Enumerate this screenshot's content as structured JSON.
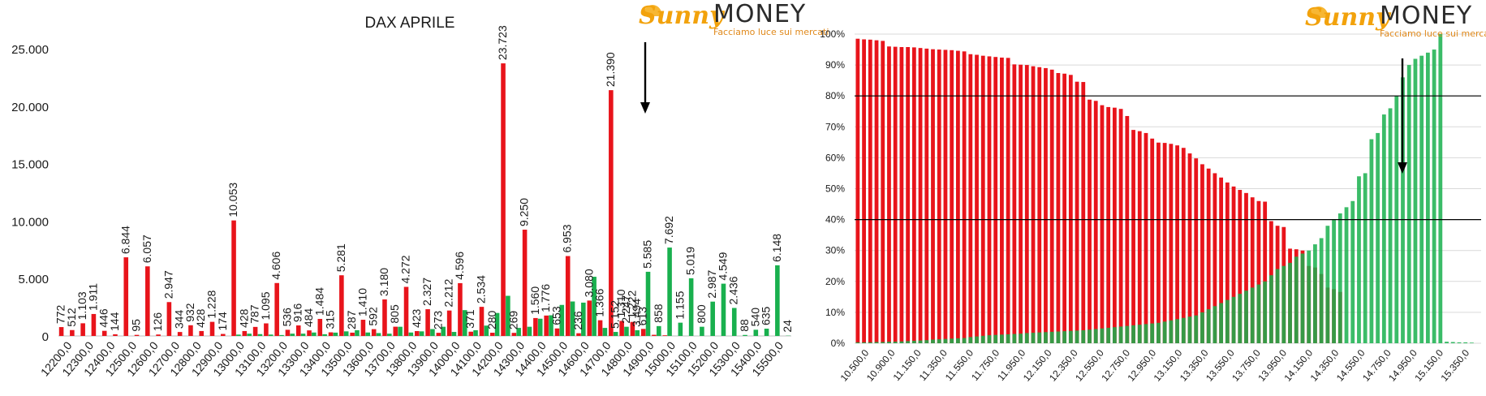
{
  "brand": {
    "sunny": "Sunny",
    "money": "MONEY",
    "tagline": "Facciamo luce sui mercati"
  },
  "chart_data": [
    {
      "type": "bar",
      "title": "DAX APRILE",
      "xlabel": "",
      "ylabel": "",
      "ylim": [
        0,
        25000
      ],
      "y_ticks": [
        "0",
        "5.000",
        "10.000",
        "15.000",
        "20.000",
        "25.000"
      ],
      "x_tick_labels": [
        "12200,0",
        "12300,0",
        "12400,0",
        "12500,0",
        "12600,0",
        "12700,0",
        "12800,0",
        "12900,0",
        "13000,0",
        "13100,0",
        "13200,0",
        "13300,0",
        "13400,0",
        "13500,0",
        "13600,0",
        "13700,0",
        "13800,0",
        "13900,0",
        "14000,0",
        "14100,0",
        "14200,0",
        "14300,0",
        "14400,0",
        "14500,0",
        "14600,0",
        "14700,0",
        "14800,0",
        "14900,0",
        "15000,0",
        "15100,0",
        "15200,0",
        "15300,0",
        "15400,0",
        "15500,0"
      ],
      "colors": {
        "series_red": "#e8141b",
        "series_green": "#19b04e",
        "axis": "#bfbfbf",
        "text": "#1a1a1a"
      },
      "series": [
        {
          "values": [
            772,
            512,
            1103,
            1911,
            446,
            144,
            6844,
            95,
            6057,
            126,
            2947,
            344,
            932,
            428,
            1228,
            174,
            10053,
            428,
            787,
            1095,
            4606,
            536,
            916,
            484,
            1484,
            315,
            5281,
            287,
            1410,
            592,
            3180,
            805,
            4272,
            423,
            2327,
            273,
            2212,
            4596,
            371,
            2534,
            280,
            23723,
            269,
            9250,
            1560,
            1776,
            653,
            6953,
            236,
            3080,
            1366,
            21390,
            1310,
            1222,
            613,
            100,
            57,
            0,
            0,
            0,
            0,
            0,
            0,
            0,
            0,
            0,
            0,
            0
          ]
        },
        {
          "values": [
            0,
            0,
            0,
            0,
            0,
            0,
            0,
            0,
            0,
            0,
            0,
            0,
            0,
            0,
            0,
            0,
            120,
            200,
            160,
            120,
            80,
            200,
            200,
            300,
            150,
            290,
            400,
            500,
            300,
            250,
            200,
            800,
            300,
            400,
            600,
            800,
            350,
            2247,
            500,
            900,
            2000,
            3494,
            700,
            800,
            1500,
            1800,
            2700,
            3000,
            2900,
            5152,
            700,
            350,
            800,
            500,
            5585,
            858,
            7692,
            1155,
            5019,
            800,
            2987,
            4549,
            2436,
            88,
            540,
            635,
            6148,
            24
          ]
        }
      ],
      "value_labels_red": [
        "772",
        "512",
        "1.103",
        "1.911",
        "446",
        "144",
        "6.844",
        "95",
        "6.057",
        "126",
        "2.947",
        "344",
        "932",
        "428",
        "1.228",
        "174",
        "10.053",
        "428",
        "787",
        "1.095",
        "4.606",
        "536",
        "916",
        "484",
        "1.484",
        "315",
        "5.281",
        "287",
        "1.410",
        "592",
        "3.180",
        "805",
        "4.272",
        "423",
        "2.327",
        "273",
        "2.212",
        "4.596",
        "371",
        "2.534",
        "280",
        "23.723",
        "269",
        "9.250",
        "1.560",
        "1.776",
        "653",
        "6.953",
        "236",
        "3.080",
        "1.366",
        "21.390",
        "1.310",
        "1.222",
        "613"
      ],
      "value_labels_green": [
        "5.152",
        "2.247",
        "3.494",
        "5.585",
        "858",
        "7.692",
        "1.155",
        "5.019",
        "800",
        "2.987",
        "4.549",
        "2.436",
        "88",
        "540",
        "635",
        "6.148",
        "24"
      ]
    },
    {
      "type": "bar",
      "title": "",
      "xlabel": "",
      "ylabel": "",
      "ylim": [
        0,
        100
      ],
      "y_ticks": [
        "0%",
        "10%",
        "20%",
        "30%",
        "40%",
        "50%",
        "60%",
        "70%",
        "80%",
        "90%",
        "100%"
      ],
      "x_tick_labels": [
        "10.500,0",
        "10.900,0",
        "11.150,0",
        "11.350,0",
        "11.550,0",
        "11.750,0",
        "11.950,0",
        "12.150,0",
        "12.350,0",
        "12.550,0",
        "12.750,0",
        "12.950,0",
        "13.150,0",
        "13.350,0",
        "13.550,0",
        "13.750,0",
        "13.950,0",
        "14.150,0",
        "14.350,0",
        "14.550,0",
        "14.750,0",
        "14.950,0",
        "15.150,0",
        "15.350,0"
      ],
      "reference_lines": [
        80,
        40
      ],
      "colors": {
        "series_red": "#e8141b",
        "series_green": "#19b04e",
        "grid": "#d9d9d9",
        "ref": "#000000"
      },
      "series": [
        {
          "values": [
            98.5,
            98.3,
            98.2,
            98,
            97.8,
            96,
            95.9,
            95.8,
            95.8,
            95.7,
            95.5,
            95.3,
            95.1,
            95,
            94.9,
            94.8,
            94.6,
            94.4,
            93.5,
            93.3,
            93,
            92.8,
            92.6,
            92.4,
            92.3,
            90.2,
            90.1,
            90,
            89.6,
            89.3,
            89,
            88.5,
            87.4,
            87.2,
            86.8,
            84.6,
            84.5,
            78.8,
            78.4,
            77,
            76.4,
            76.2,
            75.8,
            73.5,
            69,
            68.6,
            68,
            66.2,
            64.9,
            64.8,
            64.5,
            64,
            63.2,
            61.4,
            59.8,
            57.9,
            56.5,
            55,
            53.6,
            52,
            50.7,
            49.6,
            48.6,
            47.2,
            46,
            45.8,
            39.5,
            38,
            37.6,
            30.6,
            30.4,
            30,
            25,
            24.5,
            22.4,
            18,
            17.5,
            16.6,
            0,
            0,
            0,
            0,
            0,
            0,
            0,
            0,
            0,
            0,
            0,
            0,
            0,
            0,
            0,
            0,
            0,
            0,
            0,
            0,
            0,
            0
          ]
        },
        {
          "values": [
            0.3,
            0.3,
            0.3,
            0.4,
            0.4,
            0.5,
            0.5,
            0.6,
            0.7,
            0.8,
            0.9,
            1,
            1.2,
            1.3,
            1.4,
            1.5,
            1.6,
            1.7,
            2,
            2.2,
            2.4,
            2.6,
            2.7,
            2.8,
            2.9,
            3,
            3.1,
            3.3,
            3.4,
            3.5,
            3.6,
            3.7,
            3.8,
            3.9,
            4,
            4.1,
            4.2,
            4.4,
            4.6,
            4.8,
            5,
            5.2,
            5.4,
            5.6,
            5.8,
            6,
            6.2,
            6.4,
            6.6,
            7,
            7.4,
            7.8,
            8.2,
            8.6,
            9,
            10,
            11,
            12,
            13,
            14,
            15,
            16,
            17,
            18,
            19,
            20,
            22,
            24,
            25,
            26,
            28,
            29,
            30,
            32,
            34,
            38,
            40,
            42,
            44,
            46,
            54,
            55,
            66,
            68,
            74,
            76,
            80,
            86,
            90,
            92,
            93,
            94,
            95,
            100,
            0.5,
            0.4,
            0.3,
            0.3,
            0.2
          ]
        }
      ]
    }
  ]
}
